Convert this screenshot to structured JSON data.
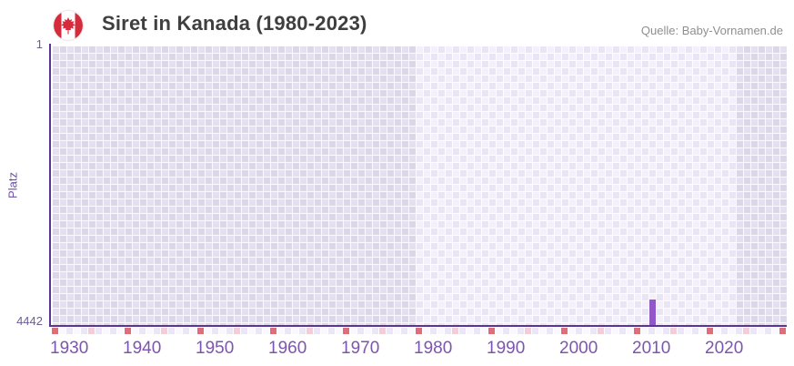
{
  "header": {
    "title": "Siret in Kanada (1980-2023)",
    "source": "Quelle: Baby-Vornamen.de",
    "flag_icon": "canada-flag"
  },
  "chart_data": {
    "type": "bar",
    "title": "Siret in Kanada (1980-2023)",
    "ylabel": "Platz",
    "xlabel": "",
    "y_axis": {
      "top_tick_label": "1",
      "bottom_tick_label": "4442",
      "min": 1,
      "max": 4442,
      "inverted": true
    },
    "x_axis": {
      "start_year": 1930,
      "end_year": 2031,
      "tick_years": [
        1930,
        1940,
        1950,
        1960,
        1970,
        1980,
        1990,
        2000,
        2010,
        2020
      ]
    },
    "highlighted_range": {
      "start_year": 1980,
      "end_year_exclusive": 2024
    },
    "series": [
      {
        "name": "Siret",
        "points": [
          {
            "year": 2012,
            "rank": 4030,
            "estimated": true
          }
        ]
      }
    ],
    "marker_strip": {
      "decade_modulo": 0,
      "half_decade_modulo": 5,
      "last_year": 2030
    },
    "legend": null,
    "grid": "checkered"
  },
  "colors": {
    "bar": "#9257c8",
    "axis_line": "#5b3594",
    "x_tick_label": "#7d55ad",
    "y_tick_label": "#6b5e91",
    "y_axis_title": "#6a4fa5",
    "title_text": "#3f3f3f",
    "source_text": "#8f8f8f",
    "strip_decade": "#e06e79",
    "strip_half_decade": "#f4cdd9",
    "strip_even": "#ece7f6",
    "strip_odd": "#f9f8fd",
    "flag_red": "#d52b3a"
  }
}
